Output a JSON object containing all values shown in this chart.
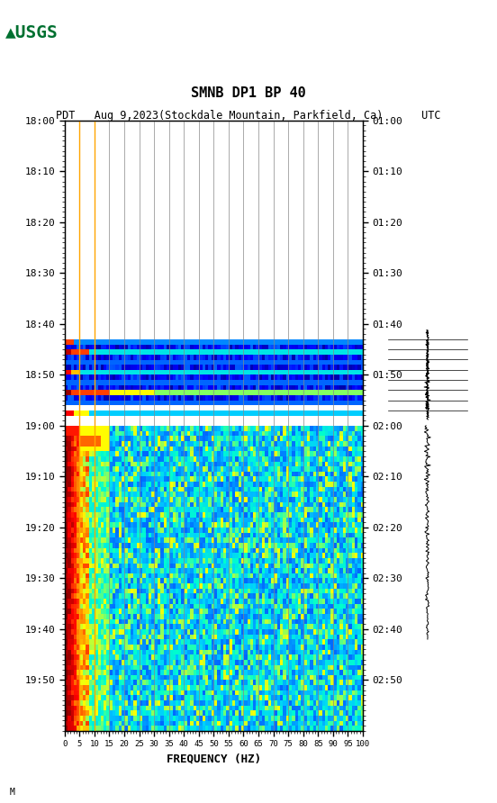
{
  "title_line1": "SMNB DP1 BP 40",
  "title_line2": "PDT   Aug 9,2023(Stockdale Mountain, Parkfield, Ca)      UTC",
  "xlabel": "FREQUENCY (HZ)",
  "freq_ticks": [
    0,
    5,
    10,
    15,
    20,
    25,
    30,
    35,
    40,
    45,
    50,
    55,
    60,
    65,
    70,
    75,
    80,
    85,
    90,
    95,
    100
  ],
  "time_labels_left": [
    "18:00",
    "18:10",
    "18:20",
    "18:30",
    "18:40",
    "18:50",
    "19:00",
    "19:10",
    "19:20",
    "19:30",
    "19:40",
    "19:50"
  ],
  "time_labels_right": [
    "01:00",
    "01:10",
    "01:20",
    "01:30",
    "01:40",
    "01:50",
    "02:00",
    "02:10",
    "02:20",
    "02:30",
    "02:40",
    "02:50"
  ],
  "n_time": 120,
  "n_freq": 100,
  "background_color": "#ffffff",
  "plot_bg_color": "#ffffff",
  "grid_color": "#808080",
  "orange_line_color": "#FFA500",
  "seismogram_color": "#000000"
}
